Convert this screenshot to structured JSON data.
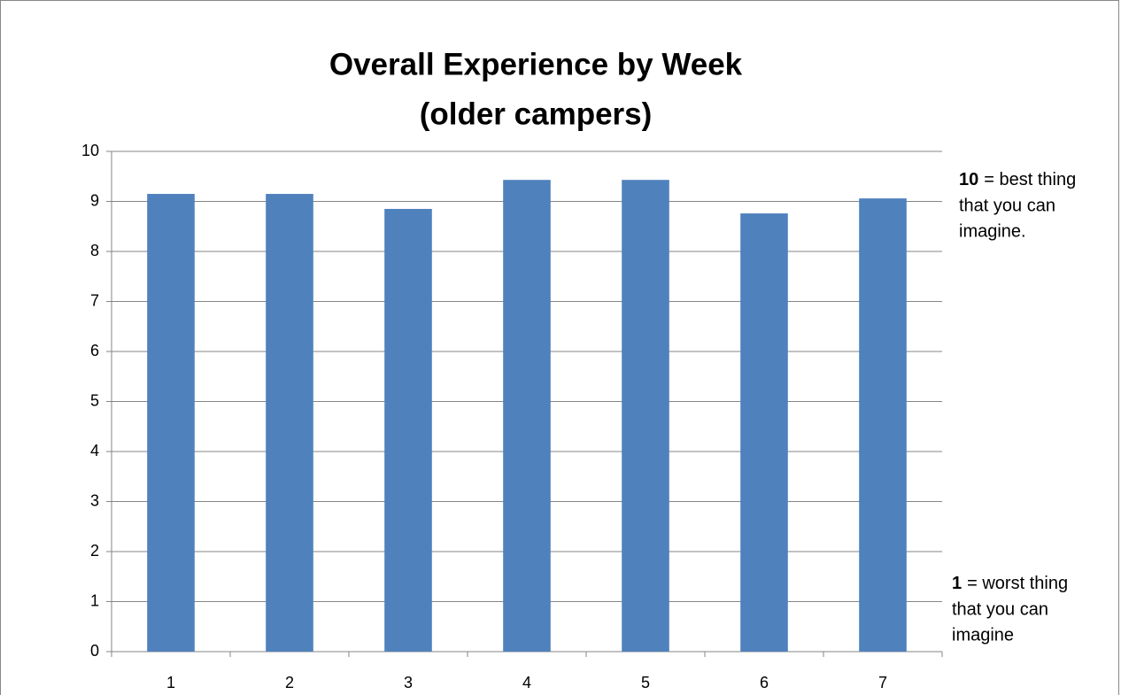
{
  "chart_data": {
    "type": "bar",
    "title": [
      "Overall Experience by Week",
      "(older campers)"
    ],
    "categories": [
      "1",
      "2",
      "3",
      "4",
      "5",
      "6",
      "7"
    ],
    "values": [
      9.15,
      9.15,
      8.85,
      9.43,
      9.43,
      8.76,
      9.06
    ],
    "color": "#4f81bd",
    "ylim": [
      0,
      10
    ],
    "yticks": [
      0,
      1,
      2,
      3,
      4,
      5,
      6,
      7,
      8,
      9,
      10
    ],
    "grid": true,
    "annotations": [
      {
        "bold": "10",
        "lines": [
          "= best thing",
          "that you can",
          "imagine."
        ]
      },
      {
        "bold": "1",
        "lines": [
          "= worst thing",
          "that you can",
          "imagine"
        ]
      }
    ]
  }
}
